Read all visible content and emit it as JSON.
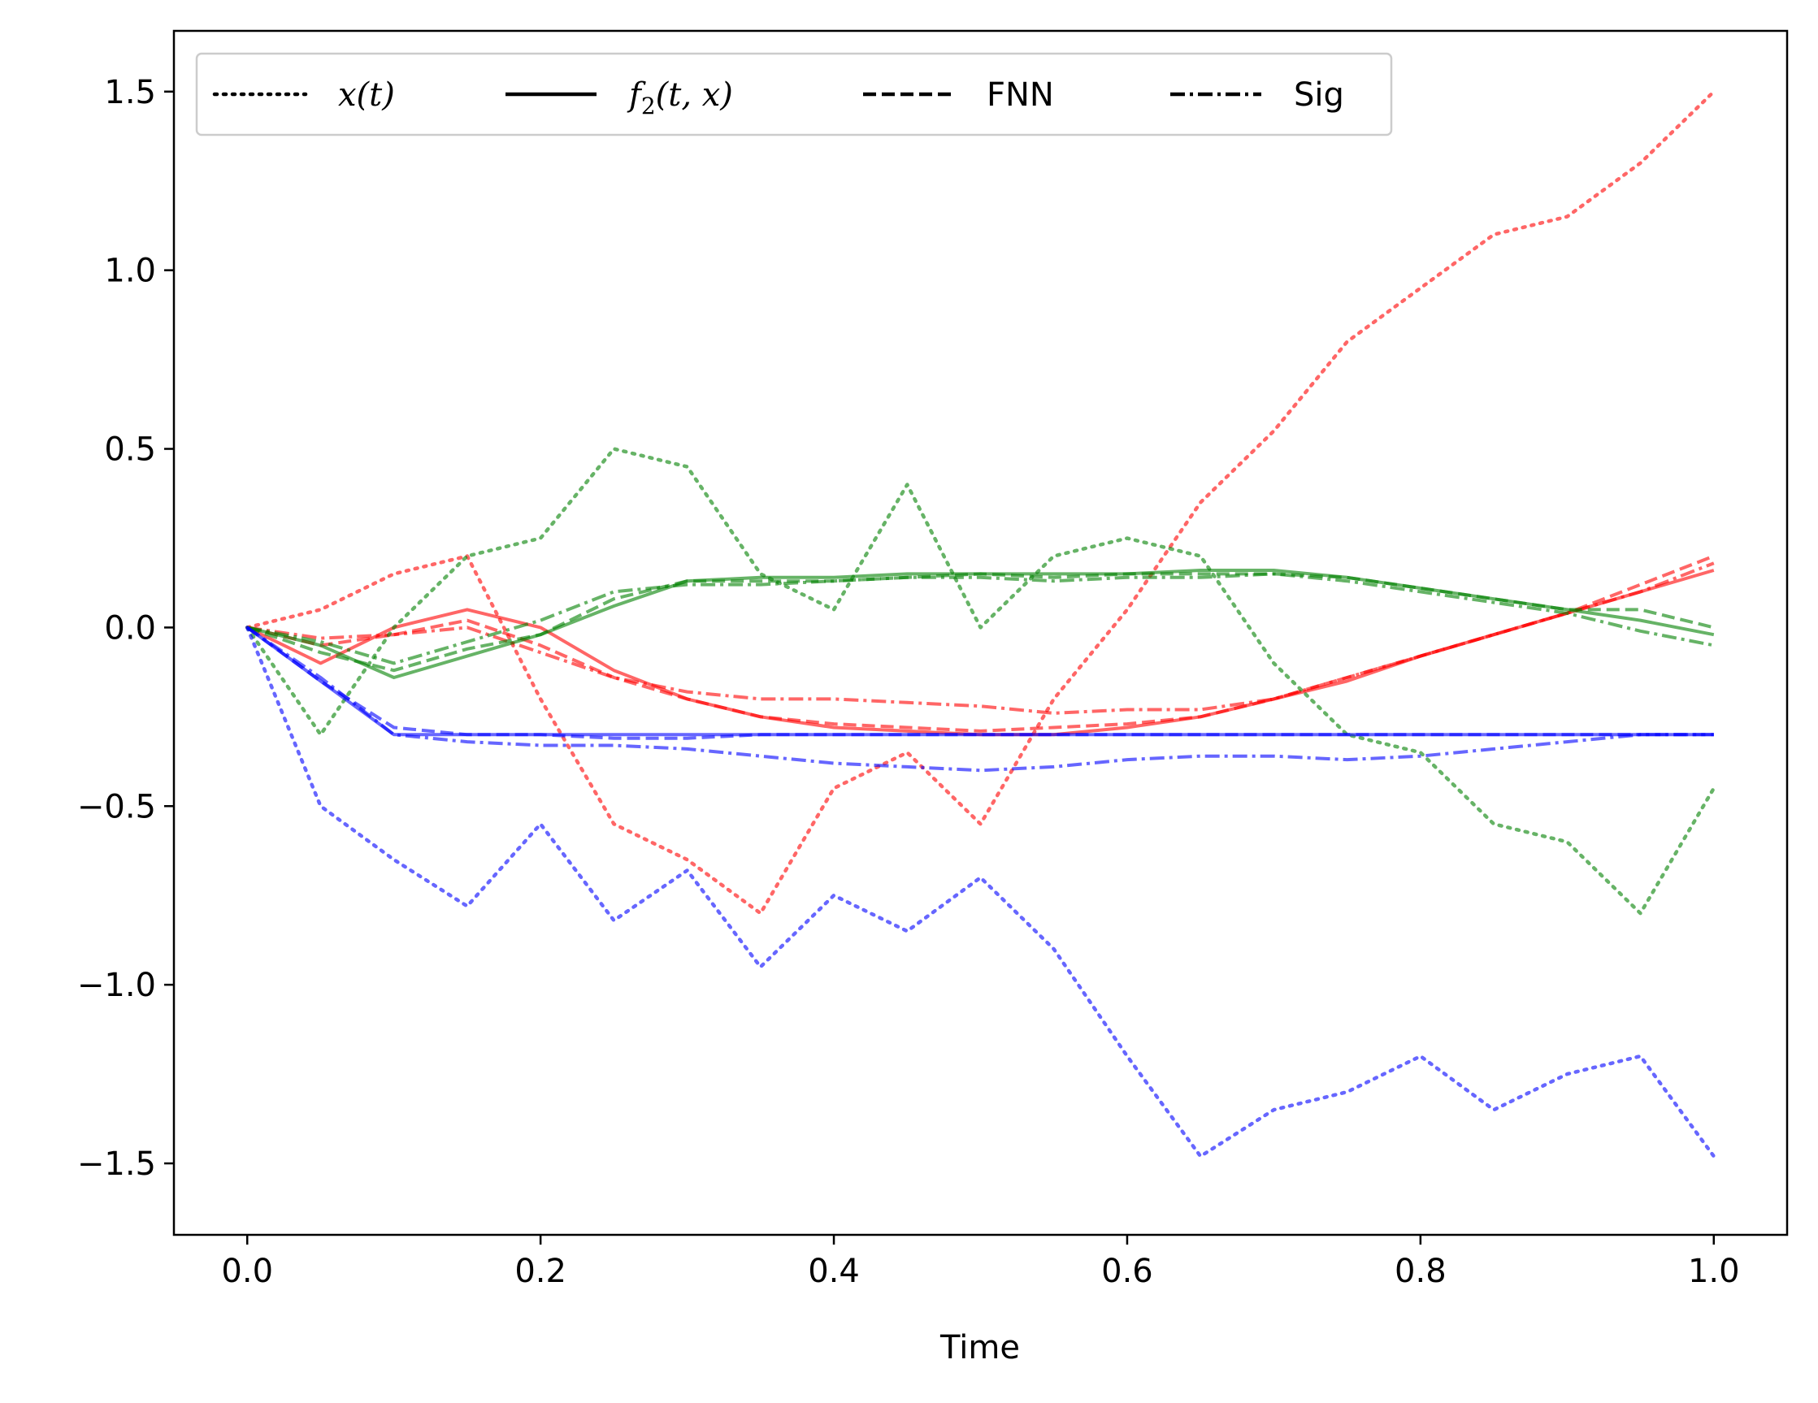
{
  "chart_data": {
    "type": "line",
    "title": "",
    "xlabel": "Time",
    "ylabel": "",
    "xlim": [
      -0.05,
      1.05
    ],
    "ylim": [
      -1.7,
      1.67
    ],
    "x_ticks": [
      {
        "value": 0.0,
        "label": "0.0"
      },
      {
        "value": 0.2,
        "label": "0.2"
      },
      {
        "value": 0.4,
        "label": "0.4"
      },
      {
        "value": 0.6,
        "label": "0.6"
      },
      {
        "value": 0.8,
        "label": "0.8"
      },
      {
        "value": 1.0,
        "label": "1.0"
      }
    ],
    "y_ticks": [
      {
        "value": 1.5,
        "label": "1.5"
      },
      {
        "value": 1.0,
        "label": "1.0"
      },
      {
        "value": 0.5,
        "label": "0.5"
      },
      {
        "value": 0.0,
        "label": "0.0"
      },
      {
        "value": -0.5,
        "label": "−0.5"
      },
      {
        "value": -1.0,
        "label": "−1.0"
      },
      {
        "value": -1.5,
        "label": "−1.5"
      }
    ],
    "grid": false,
    "legend": {
      "position": "top-left",
      "entries": [
        {
          "style": "dotted",
          "label_plain": "x(t)",
          "label_main": "x(t)",
          "label_sub": "",
          "label_tail": ""
        },
        {
          "style": "solid",
          "label_plain": "f2(t, x)",
          "label_main": "f",
          "label_sub": "2",
          "label_tail": "(t, x)"
        },
        {
          "style": "dashed",
          "label_plain": "FNN",
          "label_main": "FNN",
          "label_sub": "",
          "label_tail": ""
        },
        {
          "style": "dashdot",
          "label_plain": "Sig",
          "label_main": "Sig",
          "label_sub": "",
          "label_tail": ""
        }
      ]
    },
    "x": [
      0.0,
      0.05,
      0.1,
      0.15,
      0.2,
      0.25,
      0.3,
      0.35,
      0.4,
      0.45,
      0.5,
      0.55,
      0.6,
      0.65,
      0.7,
      0.75,
      0.8,
      0.85,
      0.9,
      0.95,
      1.0
    ],
    "series": [
      {
        "name": "x(t) red",
        "color": "#ff0000",
        "style": "dotted",
        "values": [
          0.0,
          0.05,
          0.15,
          0.2,
          -0.2,
          -0.55,
          -0.65,
          -0.8,
          -0.45,
          -0.35,
          -0.55,
          -0.2,
          0.05,
          0.35,
          0.55,
          0.8,
          0.95,
          1.1,
          1.15,
          1.3,
          1.5
        ]
      },
      {
        "name": "f2 red",
        "color": "#ff0000",
        "style": "solid",
        "values": [
          0.0,
          -0.1,
          0.0,
          0.05,
          0.0,
          -0.12,
          -0.2,
          -0.25,
          -0.28,
          -0.29,
          -0.3,
          -0.3,
          -0.28,
          -0.25,
          -0.2,
          -0.15,
          -0.08,
          -0.02,
          0.04,
          0.1,
          0.16
        ]
      },
      {
        "name": "FNN red",
        "color": "#ff0000",
        "style": "dashed",
        "values": [
          0.0,
          -0.05,
          -0.02,
          0.02,
          -0.05,
          -0.14,
          -0.2,
          -0.25,
          -0.27,
          -0.28,
          -0.29,
          -0.28,
          -0.27,
          -0.25,
          -0.2,
          -0.14,
          -0.08,
          -0.02,
          0.04,
          0.12,
          0.2
        ]
      },
      {
        "name": "Sig red",
        "color": "#ff0000",
        "style": "dashdot",
        "values": [
          0.0,
          -0.03,
          -0.02,
          0.0,
          -0.07,
          -0.14,
          -0.18,
          -0.2,
          -0.2,
          -0.21,
          -0.22,
          -0.24,
          -0.23,
          -0.23,
          -0.2,
          -0.14,
          -0.08,
          -0.02,
          0.04,
          0.1,
          0.18
        ]
      },
      {
        "name": "x(t) green",
        "color": "#008000",
        "style": "dotted",
        "values": [
          0.0,
          -0.3,
          0.0,
          0.2,
          0.25,
          0.5,
          0.45,
          0.15,
          0.05,
          0.4,
          0.0,
          0.2,
          0.25,
          0.2,
          -0.1,
          -0.3,
          -0.35,
          -0.55,
          -0.6,
          -0.8,
          -0.45
        ]
      },
      {
        "name": "f2 green",
        "color": "#008000",
        "style": "solid",
        "values": [
          0.0,
          -0.05,
          -0.14,
          -0.08,
          -0.02,
          0.06,
          0.13,
          0.14,
          0.14,
          0.15,
          0.15,
          0.15,
          0.15,
          0.16,
          0.16,
          0.14,
          0.11,
          0.08,
          0.05,
          0.02,
          -0.02
        ]
      },
      {
        "name": "FNN green",
        "color": "#008000",
        "style": "dashed",
        "values": [
          0.0,
          -0.07,
          -0.12,
          -0.06,
          -0.02,
          0.08,
          0.13,
          0.13,
          0.13,
          0.14,
          0.15,
          0.14,
          0.15,
          0.15,
          0.15,
          0.14,
          0.11,
          0.08,
          0.05,
          0.05,
          0.0
        ]
      },
      {
        "name": "Sig green",
        "color": "#008000",
        "style": "dashdot",
        "values": [
          0.0,
          -0.04,
          -0.1,
          -0.04,
          0.02,
          0.1,
          0.12,
          0.12,
          0.13,
          0.14,
          0.14,
          0.13,
          0.14,
          0.14,
          0.15,
          0.13,
          0.1,
          0.07,
          0.04,
          -0.01,
          -0.05
        ]
      },
      {
        "name": "x(t) blue",
        "color": "#0000ff",
        "style": "dotted",
        "values": [
          0.0,
          -0.5,
          -0.65,
          -0.78,
          -0.55,
          -0.82,
          -0.68,
          -0.95,
          -0.75,
          -0.85,
          -0.7,
          -0.9,
          -1.2,
          -1.48,
          -1.35,
          -1.3,
          -1.2,
          -1.35,
          -1.25,
          -1.2,
          -1.48
        ]
      },
      {
        "name": "f2 blue",
        "color": "#0000ff",
        "style": "solid",
        "values": [
          0.0,
          -0.15,
          -0.3,
          -0.3,
          -0.3,
          -0.3,
          -0.3,
          -0.3,
          -0.3,
          -0.3,
          -0.3,
          -0.3,
          -0.3,
          -0.3,
          -0.3,
          -0.3,
          -0.3,
          -0.3,
          -0.3,
          -0.3,
          -0.3
        ]
      },
      {
        "name": "FNN blue",
        "color": "#0000ff",
        "style": "dashed",
        "values": [
          0.0,
          -0.15,
          -0.28,
          -0.3,
          -0.3,
          -0.31,
          -0.31,
          -0.3,
          -0.3,
          -0.3,
          -0.3,
          -0.3,
          -0.3,
          -0.3,
          -0.3,
          -0.3,
          -0.3,
          -0.3,
          -0.3,
          -0.3,
          -0.3
        ]
      },
      {
        "name": "Sig blue",
        "color": "#0000ff",
        "style": "dashdot",
        "values": [
          0.0,
          -0.14,
          -0.3,
          -0.32,
          -0.33,
          -0.33,
          -0.34,
          -0.36,
          -0.38,
          -0.39,
          -0.4,
          -0.39,
          -0.37,
          -0.36,
          -0.36,
          -0.37,
          -0.36,
          -0.34,
          -0.32,
          -0.3,
          -0.3
        ]
      }
    ]
  }
}
